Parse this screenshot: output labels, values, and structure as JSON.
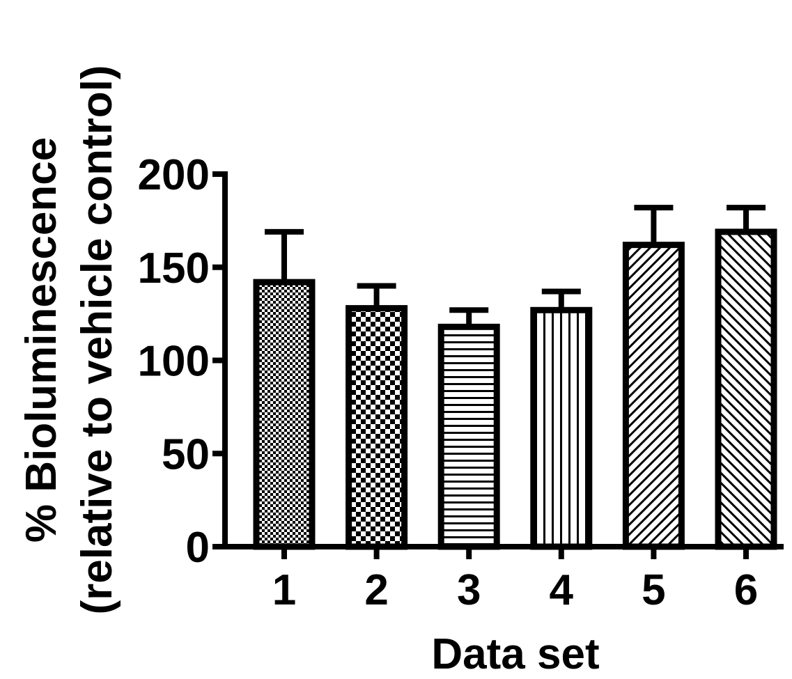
{
  "chart_data": {
    "type": "bar",
    "categories": [
      "1",
      "2",
      "3",
      "4",
      "5",
      "6"
    ],
    "values": [
      142,
      128,
      118,
      127,
      162,
      169
    ],
    "error_upper": [
      169,
      140,
      127,
      137,
      182,
      182
    ],
    "patterns": [
      "fine-check",
      "checker",
      "horizontal-lines",
      "vertical-lines",
      "diagonal-lines",
      "diagonal-lines-reverse"
    ],
    "title": "",
    "xlabel": "Data set",
    "ylabel_line1": "% Bioluminescence",
    "ylabel_line2": "(relative to vehicle control)",
    "ylim": [
      0,
      200
    ],
    "yticks": [
      "0",
      "50",
      "100",
      "150",
      "200"
    ],
    "grid": false,
    "legend": "none",
    "colors": {
      "bar_stroke": "#000000",
      "bar_fill": "#ffffff",
      "pattern_ink": "#000000"
    }
  }
}
